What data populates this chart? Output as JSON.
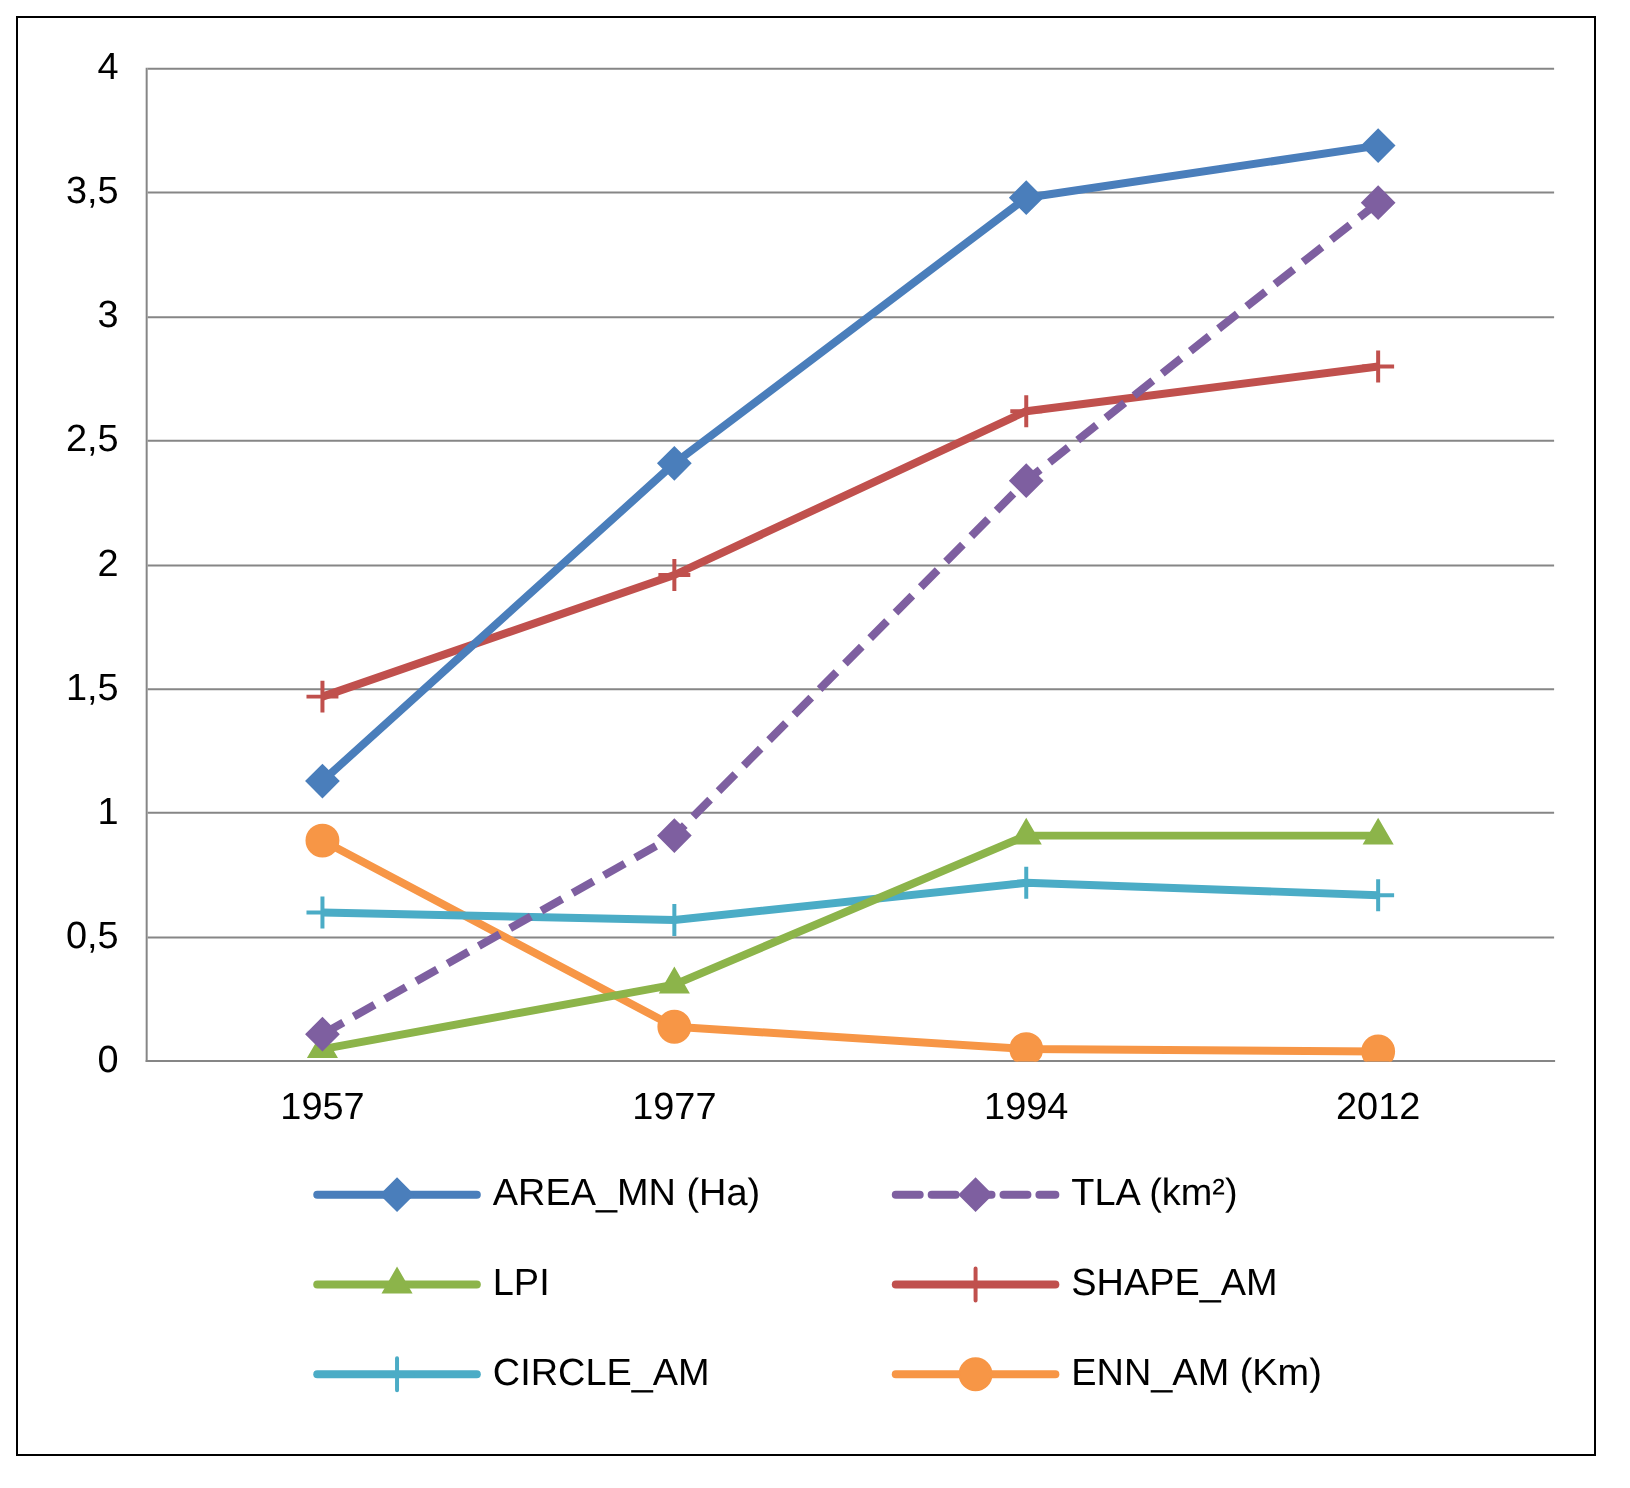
{
  "chart_data": {
    "type": "line",
    "categories": [
      "1957",
      "1977",
      "1994",
      "2012"
    ],
    "series": [
      {
        "name": "AREA_MN (Ha)",
        "color": "#4a7ebb",
        "marker": "diamond",
        "line_style": "solid",
        "values": [
          1.13,
          2.41,
          3.48,
          3.69
        ]
      },
      {
        "name": "TLA (km²)",
        "color": "#7e5fa0",
        "marker": "diamond",
        "line_style": "dashed",
        "values": [
          0.11,
          0.91,
          2.34,
          3.46
        ]
      },
      {
        "name": "LPI",
        "color": "#8cb44a",
        "marker": "triangle",
        "line_style": "solid",
        "values": [
          0.05,
          0.31,
          0.91,
          0.91
        ]
      },
      {
        "name": "SHAPE_AM",
        "color": "#c0504d",
        "marker": "cross",
        "line_style": "solid",
        "values": [
          1.47,
          1.96,
          2.62,
          2.8
        ]
      },
      {
        "name": "CIRCLE_AM",
        "color": "#4bacc6",
        "marker": "cross",
        "line_style": "solid",
        "values": [
          0.6,
          0.57,
          0.72,
          0.67
        ]
      },
      {
        "name": "ENN_AM (Km)",
        "color": "#f79646",
        "marker": "circle",
        "line_style": "solid",
        "values": [
          0.89,
          0.14,
          0.05,
          0.04
        ]
      }
    ],
    "ylim": [
      0,
      4
    ],
    "yticks": [
      0,
      {
        "value": 0.5,
        "label": "0,5"
      },
      1,
      {
        "value": 1.5,
        "label": "1,5"
      },
      2,
      {
        "value": 2.5,
        "label": "2,5"
      },
      3,
      {
        "value": 3.5,
        "label": "3,5"
      },
      4
    ],
    "grid": "y",
    "legend": "bottom"
  }
}
